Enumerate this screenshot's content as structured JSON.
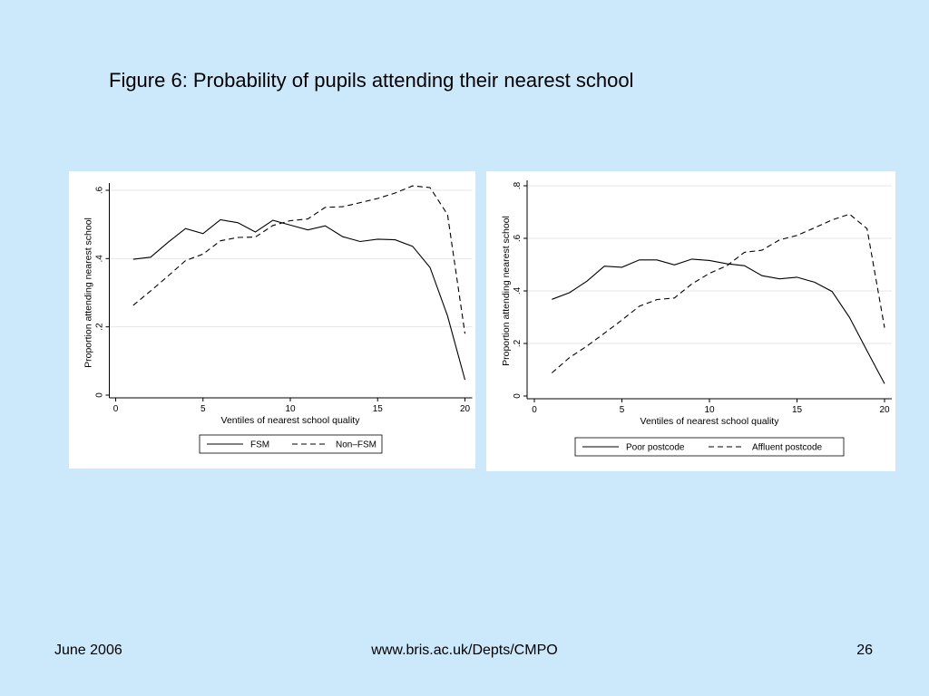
{
  "slide": {
    "title": "Figure 6: Probability of pupils attending their nearest school",
    "footer_left": "June 2006",
    "footer_center": "www.bris.ac.uk/Depts/CMPO",
    "footer_right": "26"
  },
  "colors": {
    "background": "#cce9fc",
    "panel": "#ffffff",
    "line": "#000000",
    "grid": "#e6e6e6"
  },
  "chart_data": [
    {
      "type": "line",
      "xlabel": "Ventiles of nearest school quality",
      "ylabel": "Proportion attending nearest school",
      "xlim": [
        0,
        20
      ],
      "ylim": [
        0,
        0.6
      ],
      "xticks": [
        0,
        5,
        10,
        15,
        20
      ],
      "yticks": [
        0,
        0.2,
        0.4,
        0.6
      ],
      "ytick_labels": [
        "0",
        ".2",
        ".4",
        ".6"
      ],
      "grid": true,
      "legend_position": "bottom",
      "x": [
        1,
        2,
        3,
        4,
        5,
        6,
        7,
        8,
        9,
        10,
        11,
        12,
        13,
        14,
        15,
        16,
        17,
        18,
        19,
        20
      ],
      "series": [
        {
          "name": "FSM",
          "style": "solid",
          "values": [
            0.398,
            0.404,
            0.448,
            0.488,
            0.473,
            0.514,
            0.505,
            0.478,
            0.512,
            0.498,
            0.484,
            0.496,
            0.464,
            0.45,
            0.457,
            0.455,
            0.436,
            0.374,
            0.232,
            0.045
          ]
        },
        {
          "name": "Non–FSM",
          "style": "dashed",
          "values": [
            0.263,
            0.305,
            0.349,
            0.394,
            0.413,
            0.452,
            0.462,
            0.463,
            0.497,
            0.511,
            0.516,
            0.55,
            0.552,
            0.564,
            0.576,
            0.592,
            0.613,
            0.608,
            0.529,
            0.18
          ]
        }
      ]
    },
    {
      "type": "line",
      "xlabel": "Ventiles of nearest school quality",
      "ylabel": "Proportion attending nearest school",
      "xlim": [
        0,
        20
      ],
      "ylim": [
        0,
        0.8
      ],
      "xticks": [
        0,
        5,
        10,
        15,
        20
      ],
      "yticks": [
        0,
        0.2,
        0.4,
        0.6,
        0.8
      ],
      "ytick_labels": [
        "0",
        ".2",
        ".4",
        ".6",
        ".8"
      ],
      "grid": true,
      "legend_position": "bottom",
      "x": [
        1,
        2,
        3,
        4,
        5,
        6,
        7,
        8,
        9,
        10,
        11,
        12,
        13,
        14,
        15,
        16,
        17,
        18,
        19,
        20
      ],
      "series": [
        {
          "name": "Poor postcode",
          "style": "solid",
          "values": [
            0.368,
            0.393,
            0.437,
            0.494,
            0.49,
            0.518,
            0.518,
            0.499,
            0.521,
            0.516,
            0.503,
            0.496,
            0.458,
            0.446,
            0.452,
            0.433,
            0.398,
            0.299,
            0.172,
            0.047
          ]
        },
        {
          "name": "Affluent postcode",
          "style": "dashed",
          "values": [
            0.088,
            0.146,
            0.19,
            0.239,
            0.289,
            0.342,
            0.367,
            0.373,
            0.427,
            0.467,
            0.496,
            0.547,
            0.555,
            0.594,
            0.611,
            0.64,
            0.67,
            0.692,
            0.637,
            0.26
          ]
        }
      ]
    }
  ]
}
